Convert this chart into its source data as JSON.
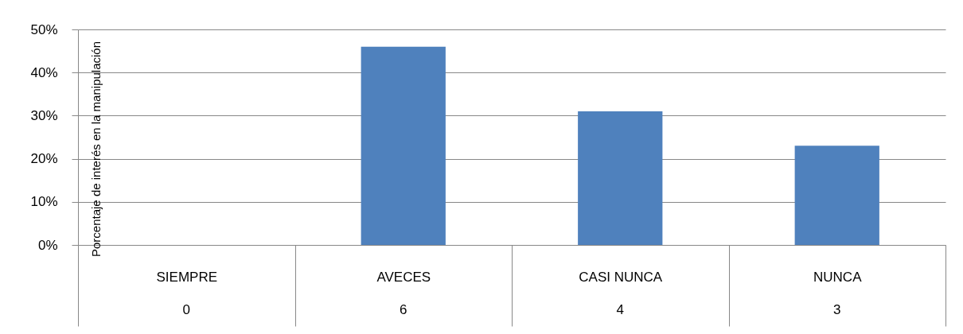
{
  "chart_data": {
    "type": "bar",
    "ylabel": "Porcentaje de interés en la manipulación",
    "categories": [
      "SIEMPRE",
      "AVECES",
      "CASI NUNCA",
      "NUNCA"
    ],
    "values": [
      0,
      46,
      31,
      23
    ],
    "annotations": [
      "0",
      "6",
      "4",
      "3"
    ],
    "color": "#4f81bd",
    "ylim": [
      0,
      50
    ],
    "yticks": [
      {
        "value": 0,
        "label": "0%"
      },
      {
        "value": 10,
        "label": "10%"
      },
      {
        "value": 20,
        "label": "20%"
      },
      {
        "value": 30,
        "label": "30%"
      },
      {
        "value": 40,
        "label": "40%"
      },
      {
        "value": 50,
        "label": "50%"
      }
    ],
    "grid": "y"
  }
}
